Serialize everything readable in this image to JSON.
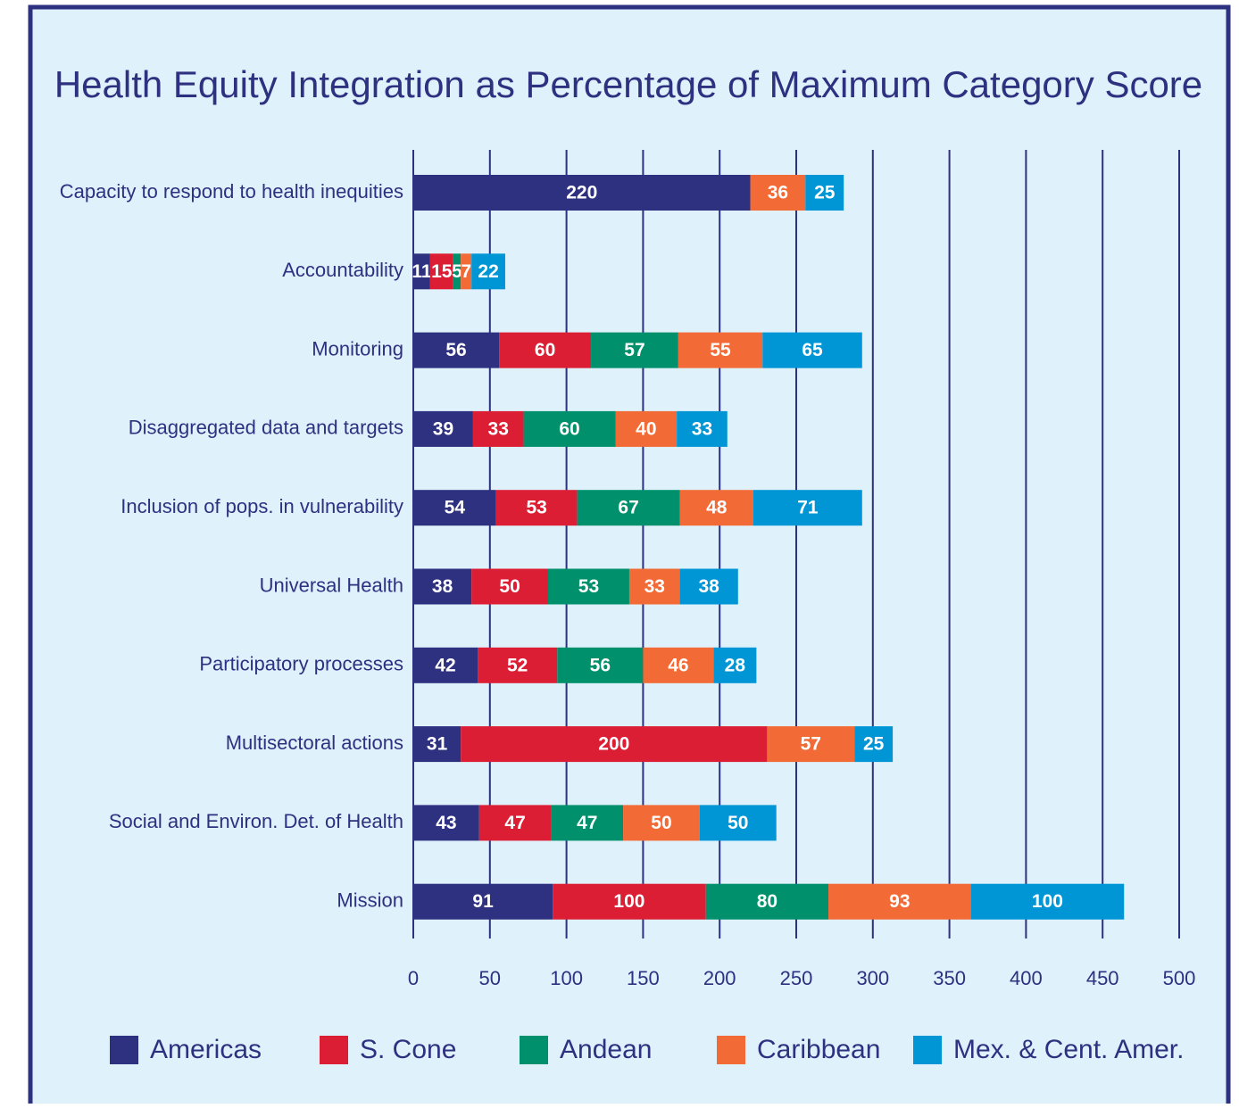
{
  "chart_data": {
    "type": "stacked-bar-horizontal",
    "title": "Health Equity Integration as Percentage of Maximum Category Score",
    "categories": [
      "Capacity to respond to health inequities",
      "Accountability",
      "Monitoring",
      "Disaggregated data and targets",
      "Inclusion of pops. in vulnerability",
      "Universal Health",
      "Participatory processes",
      "Multisectoral actions",
      "Social and Environ. Det. of Health",
      "Mission"
    ],
    "series": [
      {
        "name": "Americas",
        "color": "#2e3080",
        "values": [
          220,
          11,
          56,
          39,
          54,
          38,
          42,
          31,
          43,
          91
        ]
      },
      {
        "name": "S. Cone",
        "color": "#dc1e35",
        "values": [
          null,
          15,
          60,
          33,
          53,
          50,
          52,
          200,
          47,
          100
        ]
      },
      {
        "name": "Andean",
        "color": "#00906b",
        "values": [
          null,
          5,
          57,
          60,
          67,
          53,
          56,
          null,
          47,
          80
        ]
      },
      {
        "name": "Caribbean",
        "color": "#f26a35",
        "values": [
          36,
          7,
          55,
          40,
          48,
          33,
          46,
          57,
          50,
          93
        ]
      },
      {
        "name": "Mex. & Cent. Amer.",
        "color": "#0096d6",
        "values": [
          25,
          22,
          65,
          33,
          71,
          38,
          28,
          25,
          50,
          100
        ]
      }
    ],
    "xlim": [
      0,
      500
    ],
    "xticks": [
      0,
      50,
      100,
      150,
      200,
      250,
      300,
      350,
      400,
      450,
      500
    ],
    "grid": true,
    "legend": "bottom"
  }
}
